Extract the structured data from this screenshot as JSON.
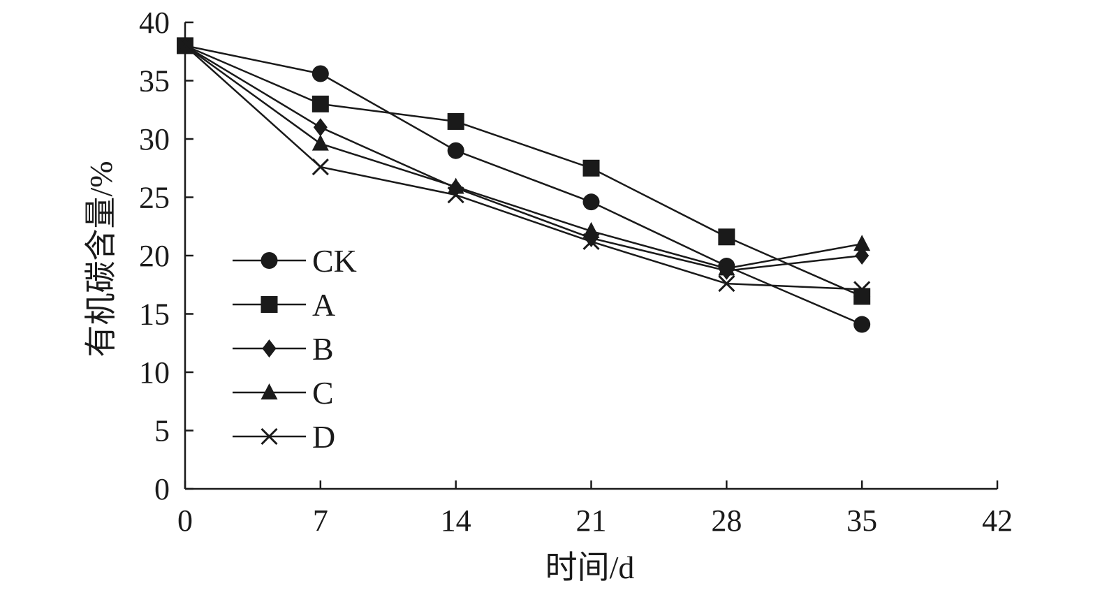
{
  "chart_data": {
    "type": "line",
    "xlabel": "时间/d",
    "ylabel": "有机碳含量/%",
    "xlim": [
      0,
      42
    ],
    "ylim": [
      0,
      40
    ],
    "xticks": [
      0,
      7,
      14,
      21,
      28,
      35,
      42
    ],
    "yticks": [
      0,
      5,
      10,
      15,
      20,
      25,
      30,
      35,
      40
    ],
    "grid": false,
    "legend_position": "left-middle",
    "x": [
      0,
      7,
      14,
      21,
      28,
      35
    ],
    "series": [
      {
        "name": "CK",
        "marker": "circle",
        "values": [
          38.0,
          35.6,
          29.0,
          24.6,
          19.1,
          14.1
        ]
      },
      {
        "name": "A",
        "marker": "square",
        "values": [
          38.0,
          33.0,
          31.5,
          27.5,
          21.6,
          16.5
        ]
      },
      {
        "name": "B",
        "marker": "diamond",
        "values": [
          38.0,
          31.0,
          25.8,
          21.5,
          18.7,
          20.0
        ]
      },
      {
        "name": "C",
        "marker": "triangle",
        "values": [
          38.0,
          29.6,
          25.9,
          22.1,
          18.9,
          21.0
        ]
      },
      {
        "name": "D",
        "marker": "cross",
        "values": [
          38.0,
          27.6,
          25.2,
          21.2,
          17.6,
          17.1
        ]
      }
    ],
    "colors": {
      "line": "#1a1a1a",
      "marker": "#1a1a1a"
    }
  }
}
